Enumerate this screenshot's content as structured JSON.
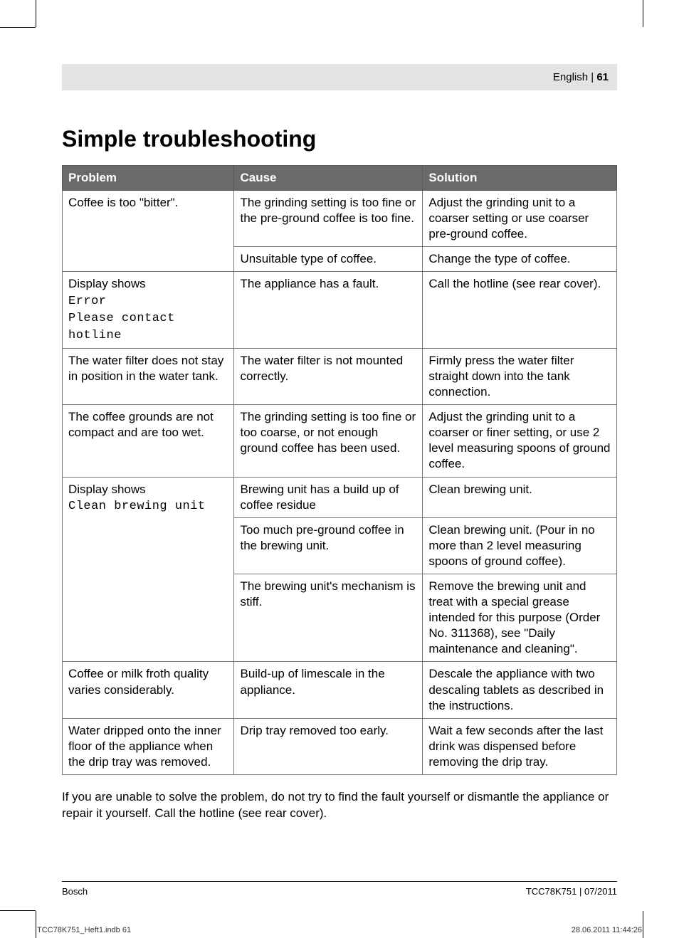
{
  "header": {
    "language": "English",
    "page_number": "61",
    "separator": " | "
  },
  "title": "Simple troubleshooting",
  "table": {
    "columns": [
      "Problem",
      "Cause",
      "Solution"
    ],
    "column_widths_pct": [
      31,
      34,
      35
    ],
    "header_bg": "#6a6a6a",
    "header_fg": "#ffffff",
    "border_color": "#777777",
    "rows": [
      {
        "problem": "Coffee is too \"bitter\".",
        "problem_rowspan": 2,
        "cause": "The grinding setting is too fine or the pre-ground coffee is too fine.",
        "solution": "Adjust the grinding unit to a coarser setting or use coarser pre-ground coffee."
      },
      {
        "cause": "Unsuitable type of coffee.",
        "solution": "Change the type of coffee."
      },
      {
        "problem": "Display shows",
        "problem_lcd1": "Error",
        "problem_lcd2": "Please contact hotline",
        "cause": "The appliance has a fault.",
        "solution": "Call the hotline (see rear cover)."
      },
      {
        "problem": "The water filter does not stay in position in the water tank.",
        "cause": "The water filter is not mounted correctly.",
        "solution": "Firmly press the water filter straight down into the tank connection."
      },
      {
        "problem": "The coffee grounds are not compact and are too wet.",
        "cause": "The grinding setting is too fine or too coarse, or not enough ground coffee has been used.",
        "solution": "Adjust the grinding unit to a coarser or finer setting, or use 2 level measuring spoons of ground coffee."
      },
      {
        "problem": "Display shows",
        "problem_lcd1": "Clean brewing unit",
        "problem_rowspan": 3,
        "cause": "Brewing unit has a build up of coffee residue",
        "solution": "Clean brewing unit."
      },
      {
        "cause": "Too much pre-ground coffee in the brewing unit.",
        "solution": "Clean brewing unit.\n(Pour in no more than 2 level measuring spoons of ground coffee)."
      },
      {
        "cause": "The brewing unit's mechanism is stiff.",
        "solution": "Remove the brewing unit and treat with a special grease intended for this purpose (Order No. 311368), see \"Daily maintenance and cleaning\"."
      },
      {
        "problem": "Coffee or milk froth quality varies considerably.",
        "cause": "Build-up of limescale in the appliance.",
        "solution": "Descale the appliance with two descaling tablets as described in the instructions."
      },
      {
        "problem": "Water dripped onto the inner floor of the appliance when the drip tray was removed.",
        "cause": "Drip tray removed too early.",
        "solution": "Wait a few seconds after the last drink was dispensed before removing the drip tray."
      }
    ]
  },
  "bottom_note": "If you are unable to solve the problem, do not try to find the fault yourself or dismantle the appliance or repair it yourself. Call the hotline (see rear cover).",
  "footer": {
    "brand": "Bosch",
    "doc_id": "TCC78K751 | 07/2011"
  },
  "meta_footer": {
    "file": "TCC78K751_Heft1.indb   61",
    "datetime": "28.06.2011   11:44:26"
  },
  "fonts": {
    "body_size_pt": 13,
    "title_size_pt": 24
  },
  "colors": {
    "page_bg": "#ffffff",
    "header_bar_bg": "#e3e3e3",
    "text": "#000000"
  }
}
